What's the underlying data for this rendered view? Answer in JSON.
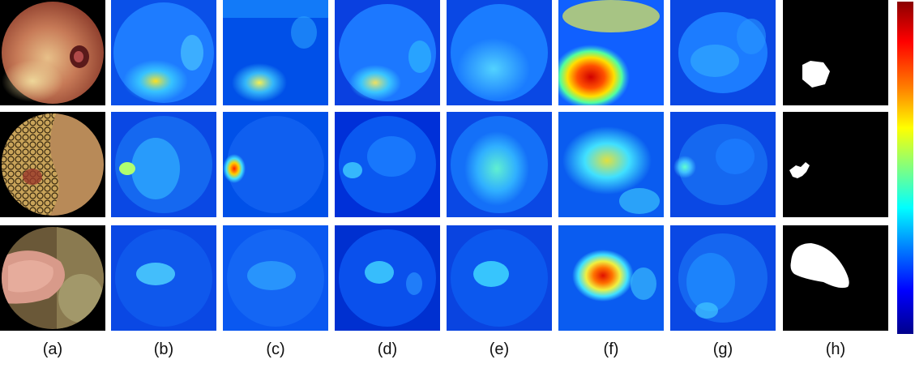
{
  "columns": [
    {
      "label": "(a)"
    },
    {
      "label": "(b)"
    },
    {
      "label": "(c)"
    },
    {
      "label": "(d)"
    },
    {
      "label": "(e)"
    },
    {
      "label": "(f)"
    },
    {
      "label": "(g)"
    },
    {
      "label": "(h)"
    }
  ],
  "rows": 3,
  "colors": {
    "background": "#ffffff",
    "heatmap_low": "#0000c8",
    "heatmap_mid": "#00e0ff",
    "heatmap_high": "#ff0000",
    "mask_background": "#000000",
    "mask_foreground": "#ffffff"
  },
  "colorbar": {
    "colormap": "jet",
    "orientation": "vertical"
  }
}
